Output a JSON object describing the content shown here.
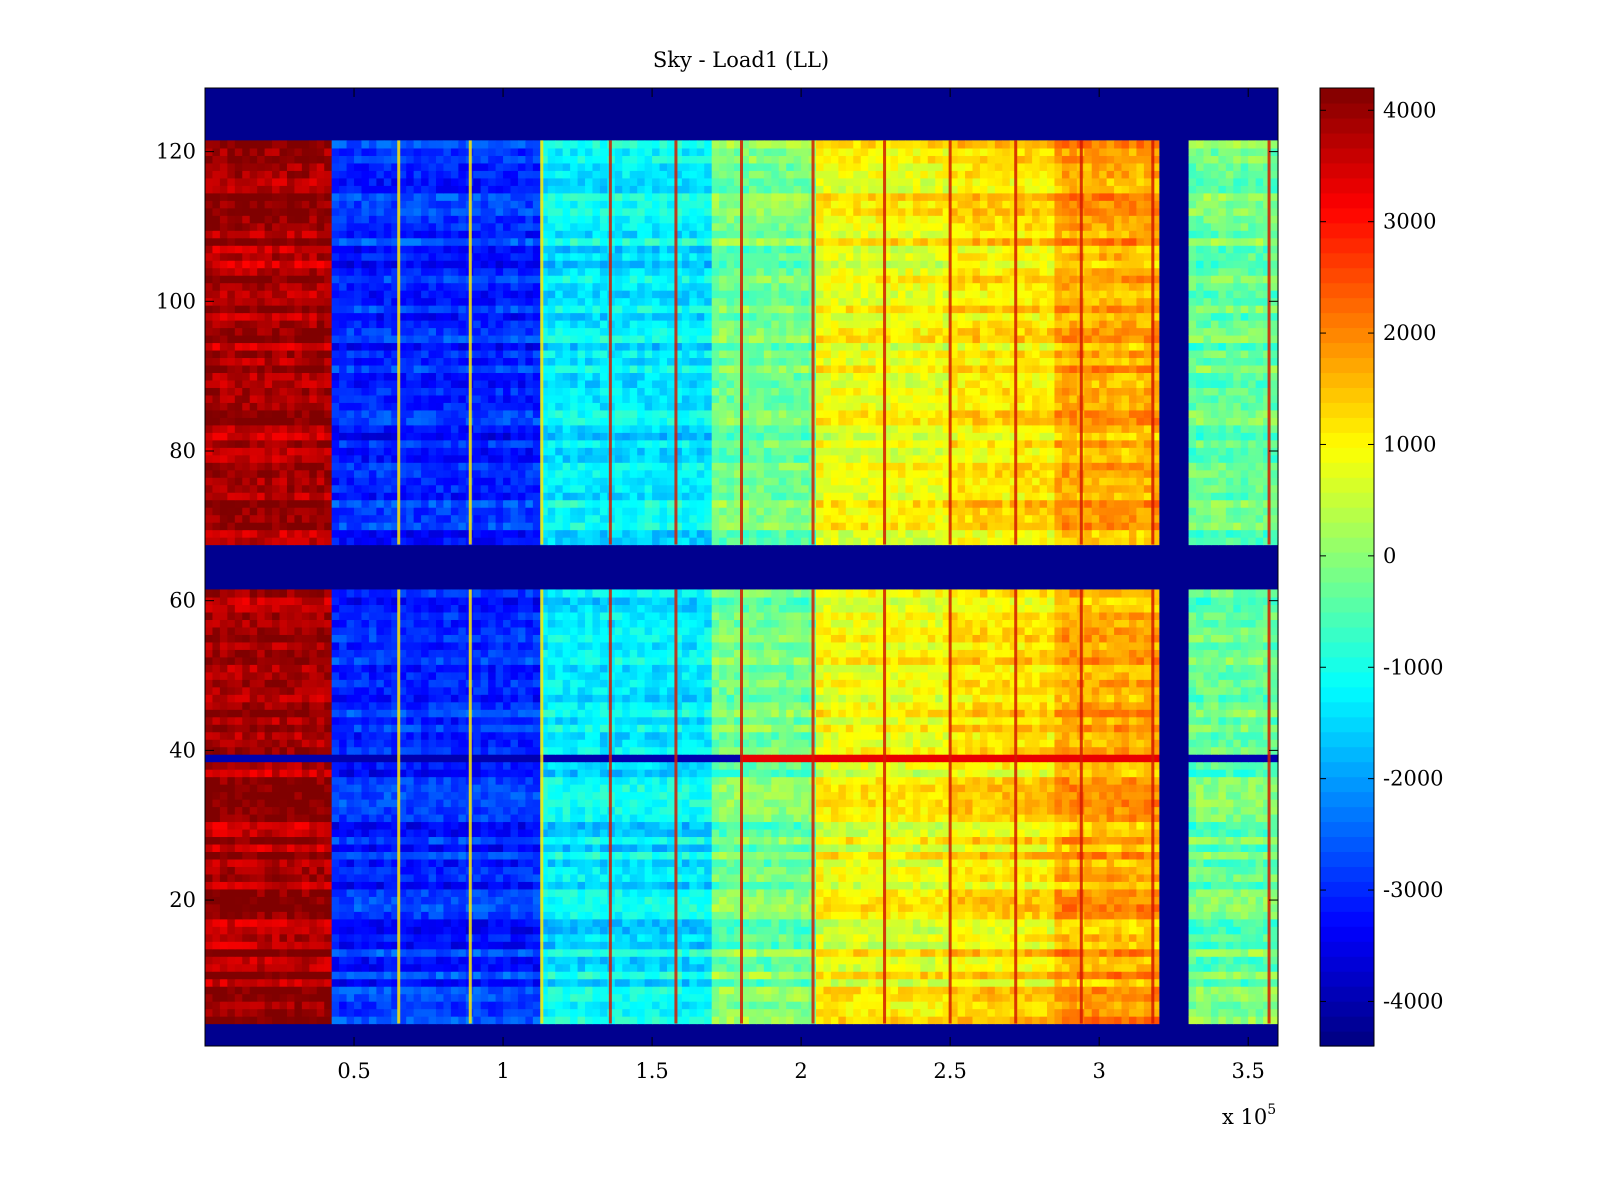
{
  "chart_data": {
    "type": "heatmap",
    "title": "Sky - Load1 (LL)",
    "xlabel": "",
    "ylabel": "",
    "x_multiplier_label": "x 10",
    "x_multiplier_exponent": "5",
    "xlim": [
      0,
      3.6
    ],
    "ylim": [
      0.5,
      128.5
    ],
    "xticks": [
      0.5,
      1,
      1.5,
      2,
      2.5,
      3,
      3.5
    ],
    "xtick_labels": [
      "0.5",
      "1",
      "1.5",
      "2",
      "2.5",
      "3",
      "3.5"
    ],
    "yticks": [
      20,
      40,
      60,
      80,
      100,
      120
    ],
    "ytick_labels": [
      "20",
      "40",
      "60",
      "80",
      "100",
      "120"
    ],
    "colormap": "jet",
    "colorbar": {
      "range": [
        -4400,
        4200
      ],
      "ticks": [
        4000,
        3000,
        2000,
        1000,
        0,
        -1000,
        -2000,
        -3000,
        -4000
      ],
      "tick_labels": [
        "4000",
        "3000",
        "2000",
        "1000",
        "0",
        "-1000",
        "-2000",
        "-3000",
        "-4000"
      ]
    },
    "blank_row_ranges": [
      [
        0.5,
        3.5
      ],
      [
        61.5,
        67.5
      ],
      [
        121.5,
        128.5
      ]
    ],
    "blank_x_range": [
      3.2,
      3.3
    ],
    "column_profile": [
      {
        "x0": 0.0,
        "x1": 0.43,
        "value": 3900
      },
      {
        "x0": 0.43,
        "x1": 1.13,
        "value": -3000
      },
      {
        "x0": 1.13,
        "x1": 1.7,
        "value": -1300
      },
      {
        "x0": 1.7,
        "x1": 2.05,
        "value": -200
      },
      {
        "x0": 2.05,
        "x1": 2.5,
        "value": 900
      },
      {
        "x0": 2.5,
        "x1": 2.85,
        "value": 1200
      },
      {
        "x0": 2.85,
        "x1": 3.2,
        "value": 1700
      },
      {
        "x0": 3.3,
        "x1": 3.6,
        "value": -300
      }
    ],
    "stripe_x": [
      0.65,
      0.89,
      1.13,
      1.36,
      1.58,
      1.8,
      2.04,
      2.28,
      2.5,
      2.72,
      2.94,
      3.18,
      3.57
    ],
    "anomalous_row": {
      "y": 39,
      "low_value": -4000,
      "high_value": 3300
    }
  }
}
